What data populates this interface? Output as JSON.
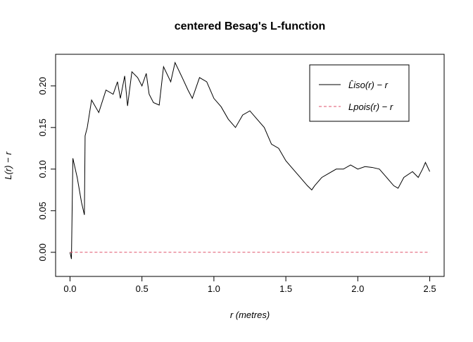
{
  "chart_data": {
    "type": "line",
    "title": "centered Besag's L-function",
    "xlabel": "r (metres)",
    "ylabel": "L(r) − r",
    "xlim": [
      -0.1,
      2.6
    ],
    "ylim": [
      -0.029,
      0.238
    ],
    "xticks": [
      {
        "value": 0,
        "label": "0.0"
      },
      {
        "value": 0.5,
        "label": "0.5"
      },
      {
        "value": 1,
        "label": "1.0"
      },
      {
        "value": 1.5,
        "label": "1.5"
      },
      {
        "value": 2,
        "label": "2.0"
      },
      {
        "value": 2.5,
        "label": "2.5"
      }
    ],
    "yticks": [
      {
        "value": 0,
        "label": "0.00"
      },
      {
        "value": 0.05,
        "label": "0.05"
      },
      {
        "value": 0.1,
        "label": "0.10"
      },
      {
        "value": 0.15,
        "label": "0.15"
      },
      {
        "value": 0.2,
        "label": "0.20"
      }
    ],
    "legend": "top-right",
    "series": [
      {
        "name": "L̂iso(r) − r",
        "color": "#000000",
        "dash": "solid",
        "x": [
          0,
          0.01,
          0.02,
          0.05,
          0.08,
          0.1,
          0.105,
          0.12,
          0.15,
          0.2,
          0.25,
          0.3,
          0.33,
          0.35,
          0.38,
          0.4,
          0.43,
          0.47,
          0.5,
          0.53,
          0.55,
          0.58,
          0.62,
          0.65,
          0.7,
          0.73,
          0.78,
          0.82,
          0.85,
          0.9,
          0.95,
          1.0,
          1.05,
          1.1,
          1.15,
          1.2,
          1.25,
          1.3,
          1.35,
          1.4,
          1.45,
          1.5,
          1.55,
          1.6,
          1.65,
          1.68,
          1.7,
          1.75,
          1.8,
          1.85,
          1.9,
          1.95,
          2.0,
          2.05,
          2.1,
          2.15,
          2.2,
          2.25,
          2.28,
          2.32,
          2.38,
          2.42,
          2.45,
          2.47,
          2.5
        ],
        "values": [
          0,
          -0.008,
          0.113,
          0.09,
          0.06,
          0.045,
          0.14,
          0.15,
          0.183,
          0.168,
          0.195,
          0.19,
          0.205,
          0.185,
          0.212,
          0.176,
          0.217,
          0.21,
          0.2,
          0.215,
          0.19,
          0.18,
          0.177,
          0.223,
          0.205,
          0.228,
          0.21,
          0.195,
          0.185,
          0.21,
          0.205,
          0.185,
          0.175,
          0.16,
          0.15,
          0.165,
          0.17,
          0.16,
          0.15,
          0.13,
          0.125,
          0.11,
          0.1,
          0.09,
          0.08,
          0.075,
          0.08,
          0.09,
          0.095,
          0.1,
          0.1,
          0.105,
          0.1,
          0.103,
          0.102,
          0.1,
          0.09,
          0.08,
          0.077,
          0.09,
          0.097,
          0.09,
          0.1,
          0.108,
          0.097
        ]
      },
      {
        "name": "Lpois(r) − r",
        "color": "#df536b",
        "dash": "dashed",
        "x": [
          0,
          2.5
        ],
        "values": [
          0,
          0
        ]
      }
    ]
  }
}
